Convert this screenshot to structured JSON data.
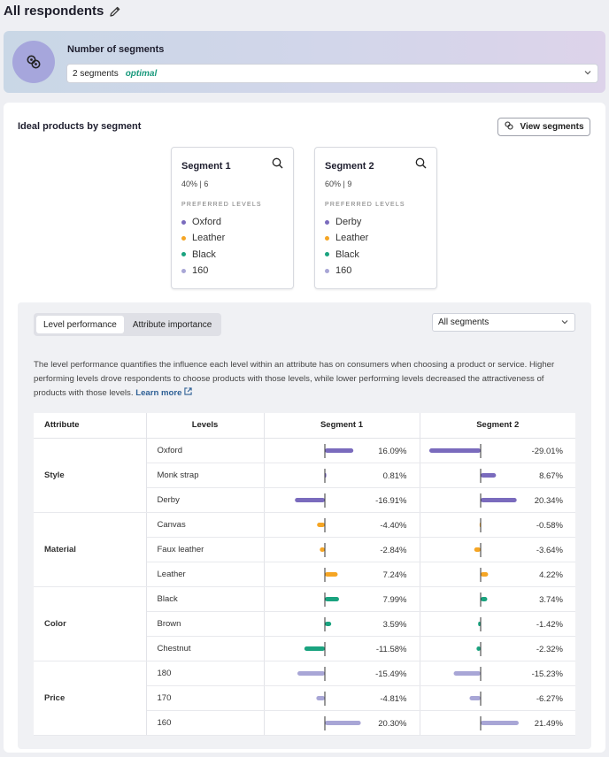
{
  "page": {
    "title": "All respondents"
  },
  "segments_panel": {
    "label": "Number of segments",
    "selected": "2 segments",
    "tag": "optimal"
  },
  "ideal": {
    "title": "Ideal products by segment",
    "view_button": "View segments",
    "cards": [
      {
        "name": "Segment 1",
        "stats": "40% | 6",
        "pref_label": "PREFERRED LEVELS",
        "levels": [
          {
            "label": "Oxford",
            "color": "#7a6bbd"
          },
          {
            "label": "Leather",
            "color": "#f5a524"
          },
          {
            "label": "Black",
            "color": "#1aa37f"
          },
          {
            "label": "160",
            "color": "#a8a6d6"
          }
        ]
      },
      {
        "name": "Segment 2",
        "stats": "60% | 9",
        "pref_label": "PREFERRED LEVELS",
        "levels": [
          {
            "label": "Derby",
            "color": "#7a6bbd"
          },
          {
            "label": "Leather",
            "color": "#f5a524"
          },
          {
            "label": "Black",
            "color": "#1aa37f"
          },
          {
            "label": "160",
            "color": "#a8a6d6"
          }
        ]
      }
    ]
  },
  "performance": {
    "tabs": [
      "Level performance",
      "Attribute importance"
    ],
    "active_tab": 0,
    "filter": "All segments",
    "description": "The level performance quantifies the influence each level within an attribute has on consumers when choosing a product or service. Higher performing levels drove respondents to choose products with those levels, while lower performing levels decreased the attractiveness of products with those levels.",
    "learn_more": "Learn more",
    "table": {
      "headers": [
        "Attribute",
        "Levels",
        "Segment 1",
        "Segment 2"
      ],
      "groups": [
        {
          "attribute": "Style",
          "color": "#7a6bbd",
          "rows": [
            {
              "level": "Oxford",
              "s1": 16.09,
              "s1_label": "16.09%",
              "s2": -29.01,
              "s2_label": "-29.01%"
            },
            {
              "level": "Monk strap",
              "s1": 0.81,
              "s1_label": "0.81%",
              "s2": 8.67,
              "s2_label": "8.67%"
            },
            {
              "level": "Derby",
              "s1": -16.91,
              "s1_label": "-16.91%",
              "s2": 20.34,
              "s2_label": "20.34%"
            }
          ]
        },
        {
          "attribute": "Material",
          "color": "#f5a524",
          "rows": [
            {
              "level": "Canvas",
              "s1": -4.4,
              "s1_label": "-4.40%",
              "s2": -0.58,
              "s2_label": "-0.58%"
            },
            {
              "level": "Faux leather",
              "s1": -2.84,
              "s1_label": "-2.84%",
              "s2": -3.64,
              "s2_label": "-3.64%"
            },
            {
              "level": "Leather",
              "s1": 7.24,
              "s1_label": "7.24%",
              "s2": 4.22,
              "s2_label": "4.22%"
            }
          ]
        },
        {
          "attribute": "Color",
          "color": "#1aa37f",
          "rows": [
            {
              "level": "Black",
              "s1": 7.99,
              "s1_label": "7.99%",
              "s2": 3.74,
              "s2_label": "3.74%"
            },
            {
              "level": "Brown",
              "s1": 3.59,
              "s1_label": "3.59%",
              "s2": -1.42,
              "s2_label": "-1.42%"
            },
            {
              "level": "Chestnut",
              "s1": -11.58,
              "s1_label": "-11.58%",
              "s2": -2.32,
              "s2_label": "-2.32%"
            }
          ]
        },
        {
          "attribute": "Price",
          "color": "#a8a6d6",
          "rows": [
            {
              "level": "180",
              "s1": -15.49,
              "s1_label": "-15.49%",
              "s2": -15.23,
              "s2_label": "-15.23%"
            },
            {
              "level": "170",
              "s1": -4.81,
              "s1_label": "-4.81%",
              "s2": -6.27,
              "s2_label": "-6.27%"
            },
            {
              "level": "160",
              "s1": 20.3,
              "s1_label": "20.30%",
              "s2": 21.49,
              "s2_label": "21.49%"
            }
          ]
        }
      ]
    }
  }
}
